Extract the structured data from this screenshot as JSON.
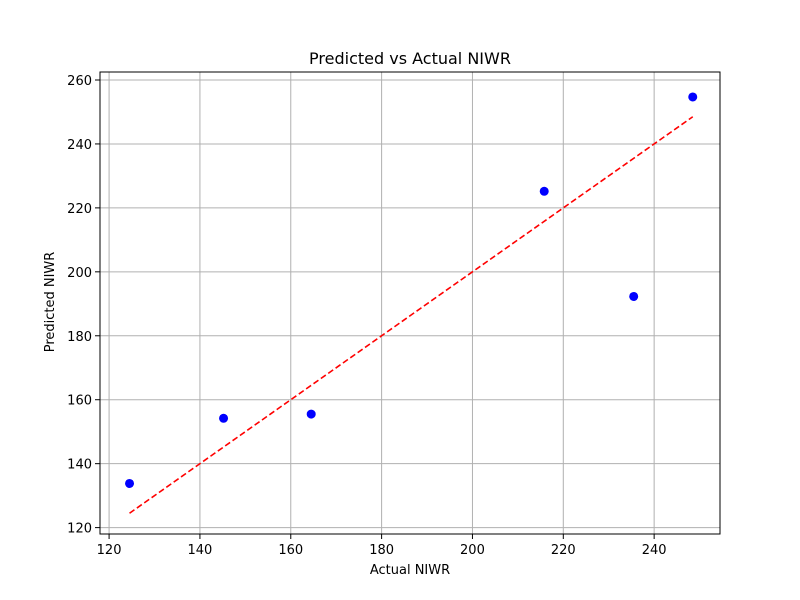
{
  "chart_data": {
    "type": "scatter",
    "title": "Predicted vs Actual NIWR",
    "xlabel": "Actual NIWR",
    "ylabel": "Predicted NIWR",
    "xlim": [
      118,
      254.5
    ],
    "ylim": [
      118,
      262.5
    ],
    "xticks": [
      120,
      140,
      160,
      180,
      200,
      220,
      240
    ],
    "yticks": [
      120,
      140,
      160,
      180,
      200,
      220,
      240,
      260
    ],
    "grid": true,
    "series": [
      {
        "kind": "points",
        "color": "#0000ff",
        "x": [
          124.5,
          145.2,
          164.5,
          215.8,
          235.5,
          248.5
        ],
        "y": [
          133.8,
          154.2,
          155.5,
          225.2,
          192.3,
          254.7
        ]
      },
      {
        "kind": "reference-line",
        "color": "#ff0000",
        "style": "dashed",
        "x": [
          124.5,
          248.5
        ],
        "y": [
          124.5,
          248.5
        ]
      }
    ]
  }
}
